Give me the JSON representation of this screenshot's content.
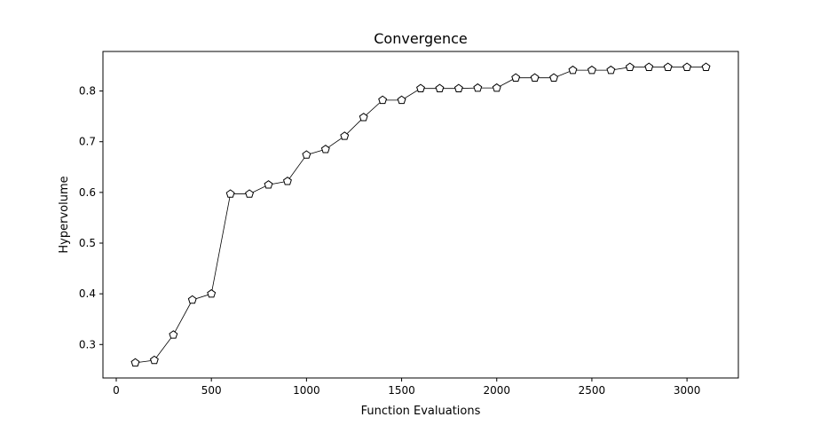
{
  "chart_data": {
    "type": "line",
    "title": "Convergence",
    "xlabel": "Function Evaluations",
    "ylabel": "Hypervolume",
    "xlim": [
      -70,
      3270
    ],
    "ylim": [
      0.234,
      0.878
    ],
    "x_ticks": [
      0,
      500,
      1000,
      1500,
      2000,
      2500,
      3000
    ],
    "y_ticks": [
      0.3,
      0.4,
      0.5,
      0.6,
      0.7,
      0.8
    ],
    "y_tick_labels": [
      "0.3",
      "0.4",
      "0.5",
      "0.6",
      "0.7",
      "0.8"
    ],
    "grid": false,
    "marker": "pentagon",
    "line_color": "#000000",
    "marker_face": "#ffffff",
    "series": [
      {
        "x": [
          100,
          200,
          300,
          400,
          500,
          600,
          700,
          800,
          900,
          1000,
          1100,
          1200,
          1300,
          1400,
          1500,
          1600,
          1700,
          1800,
          1900,
          2000,
          2100,
          2200,
          2300,
          2400,
          2500,
          2600,
          2700,
          2800,
          2900,
          3000,
          3100
        ],
        "values": [
          0.264,
          0.269,
          0.319,
          0.388,
          0.4,
          0.597,
          0.597,
          0.615,
          0.622,
          0.674,
          0.685,
          0.711,
          0.748,
          0.782,
          0.782,
          0.805,
          0.805,
          0.805,
          0.806,
          0.806,
          0.826,
          0.826,
          0.826,
          0.841,
          0.841,
          0.841,
          0.847,
          0.847,
          0.847,
          0.847,
          0.847
        ]
      }
    ]
  }
}
